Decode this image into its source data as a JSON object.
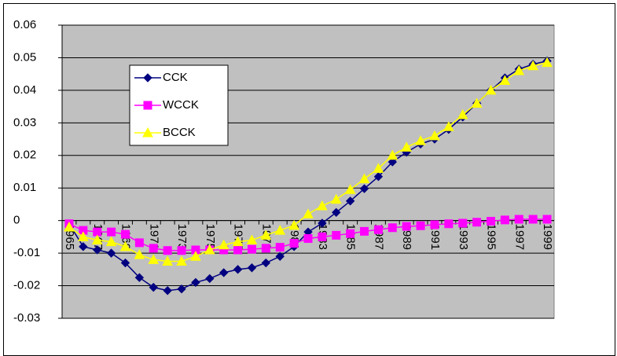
{
  "chart_data": {
    "type": "line",
    "categories": [
      "1965",
      null,
      "1967",
      null,
      "1969",
      null,
      "1971",
      null,
      "1973",
      null,
      "1975",
      null,
      "1977",
      null,
      "1979",
      null,
      "1981",
      null,
      "1983",
      null,
      "1985",
      null,
      "1987",
      null,
      "1989",
      null,
      "1991",
      null,
      "1993",
      null,
      "1995",
      null,
      "1997",
      null,
      "1999"
    ],
    "series": [
      {
        "name": "CCK",
        "color": "#000080",
        "marker": "diamond",
        "values": [
          -0.001,
          -0.008,
          -0.009,
          -0.01,
          -0.013,
          -0.0175,
          -0.0205,
          -0.0215,
          -0.021,
          -0.019,
          -0.0178,
          -0.016,
          -0.015,
          -0.0145,
          -0.013,
          -0.011,
          -0.008,
          -0.0035,
          -0.0008,
          0.0025,
          0.006,
          0.0098,
          0.0135,
          0.018,
          0.021,
          0.0235,
          0.025,
          0.028,
          0.0318,
          0.036,
          0.04,
          0.0438,
          0.0465,
          0.048,
          0.049
        ]
      },
      {
        "name": "WCCK",
        "color": "#ff00ff",
        "marker": "square",
        "values": [
          -0.001,
          -0.003,
          -0.0035,
          -0.0035,
          -0.0042,
          -0.0068,
          -0.0085,
          -0.0092,
          -0.0092,
          -0.009,
          -0.009,
          -0.009,
          -0.009,
          -0.0088,
          -0.0085,
          -0.0082,
          -0.007,
          -0.0055,
          -0.005,
          -0.0045,
          -0.004,
          -0.0033,
          -0.0028,
          -0.0022,
          -0.0018,
          -0.0016,
          -0.0013,
          -0.001,
          -0.0008,
          -0.0005,
          -0.0002,
          0.0002,
          0.0004,
          0.0004,
          0.0004
        ]
      },
      {
        "name": "BCCK",
        "color": "#ffff00",
        "marker": "triangle",
        "values": [
          -0.002,
          -0.005,
          -0.006,
          -0.0065,
          -0.008,
          -0.0105,
          -0.012,
          -0.0125,
          -0.0125,
          -0.011,
          -0.009,
          -0.0075,
          -0.0065,
          -0.006,
          -0.0045,
          -0.003,
          -0.0015,
          0.002,
          0.0045,
          0.0065,
          0.0095,
          0.0128,
          0.016,
          0.02,
          0.0225,
          0.0245,
          0.026,
          0.0288,
          0.0325,
          0.036,
          0.04,
          0.043,
          0.046,
          0.0475,
          0.0485
        ]
      }
    ],
    "ylim": [
      -0.03,
      0.06
    ],
    "yticks": [
      -0.03,
      -0.02,
      -0.01,
      0,
      0.01,
      0.02,
      0.03,
      0.04,
      0.05,
      0.06
    ],
    "grid": true,
    "legend": "upper left",
    "plot_background": "#c0c0c0"
  }
}
